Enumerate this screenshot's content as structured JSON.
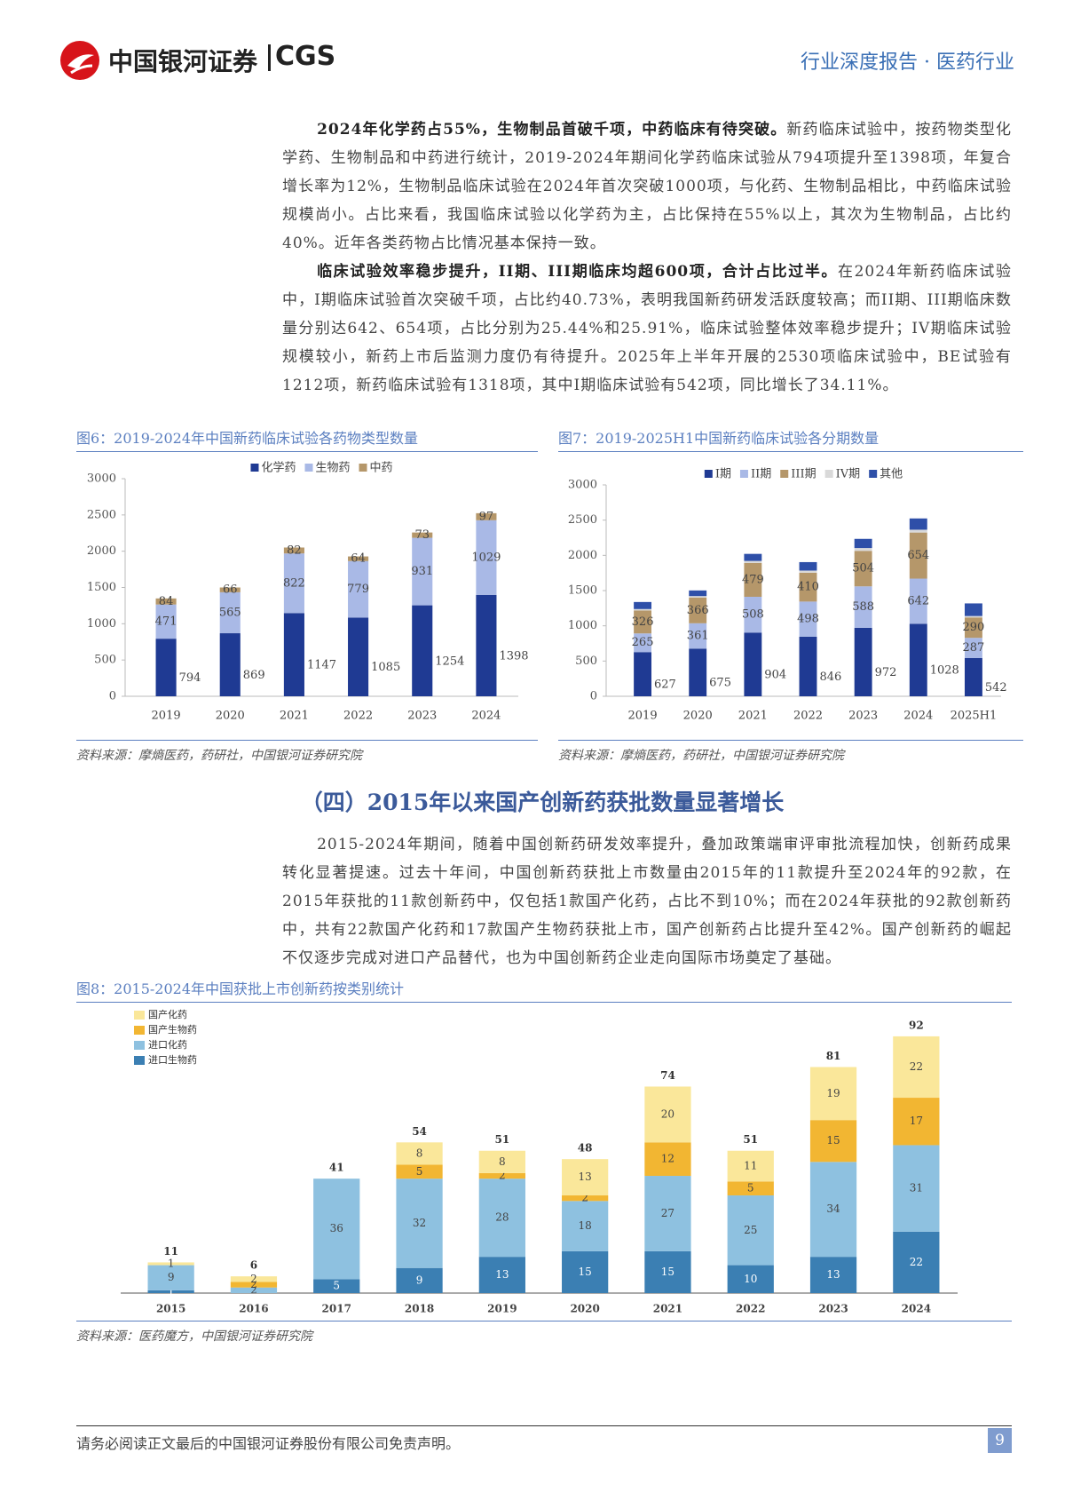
{
  "header": {
    "logo_cn": "中国银河证券",
    "logo_en": "CGS",
    "right": "行业深度报告 · 医药行业"
  },
  "paragraphs": [
    {
      "lead": "2024年化学药占55%，生物制品首破千项，中药临床有待突破。",
      "text": "新药临床试验中，按药物类型化学药、生物制品和中药进行统计，2019-2024年期间化学药临床试验从794项提升至1398项，年复合增长率为12%，生物制品临床试验在2024年首次突破1000项，与化药、生物制品相比，中药临床试验规模尚小。占比来看，我国临床试验以化学药为主，占比保持在55%以上，其次为生物制品，占比约40%。近年各类药物占比情况基本保持一致。"
    },
    {
      "lead": "临床试验效率稳步提升，II期、III期临床均超600项，合计占比过半。",
      "text": "在2024年新药临床试验中，I期临床试验首次突破千项，占比约40.73%，表明我国新药研发活跃度较高；而II期、III期临床数量分别达642、654项，占比分别为25.44%和25.91%，临床试验整体效率稳步提升；IV期临床试验规模较小，新药上市后监测力度仍有待提升。2025年上半年开展的2530项临床试验中，BE试验有1212项，新药临床试验有1318项，其中I期临床试验有542项，同比增长了34.11%。"
    },
    {
      "lead": "",
      "text": "2015-2024年期间，随着中国创新药研发效率提升，叠加政策端审评审批流程加快，创新药成果转化显著提速。过去十年间，中国创新药获批上市数量由2015年的11款提升至2024年的92款，在2015年获批的11款创新药中，仅包括1款国产化药，占比不到10%；而在2024年获批的92款创新药中，共有22款国产化药和17款国产生物药获批上市，国产创新药占比提升至42%。国产创新药的崛起不仅逐步完成对进口产品替代，也为中国创新药企业走向国际市场奠定了基础。"
    }
  ],
  "section_heading": "（四）2015年以来国产创新药获批数量显著增长",
  "chart_data": [
    {
      "type": "stacked_bar",
      "title": "图6：2019-2024年中国新药临床试验各药物类型数量",
      "source": "资料来源：摩熵医药，药研社，中国银河证券研究院",
      "categories": [
        "2019",
        "2020",
        "2021",
        "2022",
        "2023",
        "2024"
      ],
      "series": [
        {
          "name": "化学药",
          "color": "#1f3a93",
          "values": [
            794,
            869,
            1147,
            1085,
            1254,
            1398
          ]
        },
        {
          "name": "生物药",
          "color": "#a9b9e6",
          "values": [
            471,
            565,
            822,
            779,
            931,
            1029
          ]
        },
        {
          "name": "中药",
          "color": "#b5976a",
          "values": [
            84,
            66,
            82,
            64,
            73,
            97
          ]
        }
      ],
      "ylim": [
        0,
        3000
      ],
      "yticks": [
        0,
        500,
        1000,
        1500,
        2000,
        2500,
        3000
      ],
      "legend": "top"
    },
    {
      "type": "stacked_bar",
      "title": "图7：2019-2025H1中国新药临床试验各分期数量",
      "source": "资料来源：摩熵医药，药研社，中国银河证券研究院",
      "categories": [
        "2019",
        "2020",
        "2021",
        "2022",
        "2023",
        "2024",
        "2025H1"
      ],
      "series": [
        {
          "name": "I期",
          "color": "#1f3a93",
          "values": [
            627,
            675,
            904,
            846,
            972,
            1028,
            542
          ]
        },
        {
          "name": "II期",
          "color": "#a9b9e6",
          "values": [
            265,
            361,
            508,
            498,
            588,
            642,
            287
          ]
        },
        {
          "name": "III期",
          "color": "#b5976a",
          "values": [
            326,
            366,
            479,
            410,
            504,
            654,
            290
          ]
        },
        {
          "name": "IV期",
          "color": "#d9d9d9",
          "values": [
            20,
            20,
            30,
            30,
            40,
            40,
            20
          ]
        },
        {
          "name": "其他",
          "color": "#2e4fa8",
          "values": [
            100,
            80,
            100,
            120,
            130,
            160,
            179
          ]
        }
      ],
      "ylim": [
        0,
        3000
      ],
      "yticks": [
        0,
        500,
        1000,
        1500,
        2000,
        2500,
        3000
      ],
      "legend": "top"
    },
    {
      "type": "stacked_bar",
      "title": "图8：2015-2024年中国获批上市创新药按类别统计",
      "source": "资料来源：医药魔方，中国银河证券研究院",
      "categories": [
        "2015",
        "2016",
        "2017",
        "2018",
        "2019",
        "2020",
        "2021",
        "2022",
        "2023",
        "2024"
      ],
      "series": [
        {
          "name": "进口生物药",
          "color": "#3b7fb3",
          "values": [
            1,
            0,
            5,
            9,
            13,
            15,
            15,
            10,
            13,
            22
          ]
        },
        {
          "name": "进口化药",
          "color": "#8ec1e0",
          "values": [
            9,
            2,
            36,
            32,
            28,
            18,
            27,
            25,
            34,
            31
          ]
        },
        {
          "name": "国产生物药",
          "color": "#f2b632",
          "values": [
            0,
            2,
            0,
            5,
            2,
            2,
            12,
            5,
            15,
            17
          ]
        },
        {
          "name": "国产化药",
          "color": "#fae79a",
          "values": [
            1,
            2,
            0,
            8,
            8,
            13,
            20,
            11,
            19,
            22
          ]
        }
      ],
      "totals": [
        11,
        6,
        41,
        54,
        51,
        48,
        74,
        51,
        81,
        92
      ],
      "legend": "upper left"
    }
  ],
  "footer": {
    "disclaimer": "请务必阅读正文最后的中国银河证券股份有限公司免责声明。",
    "page": "9"
  }
}
